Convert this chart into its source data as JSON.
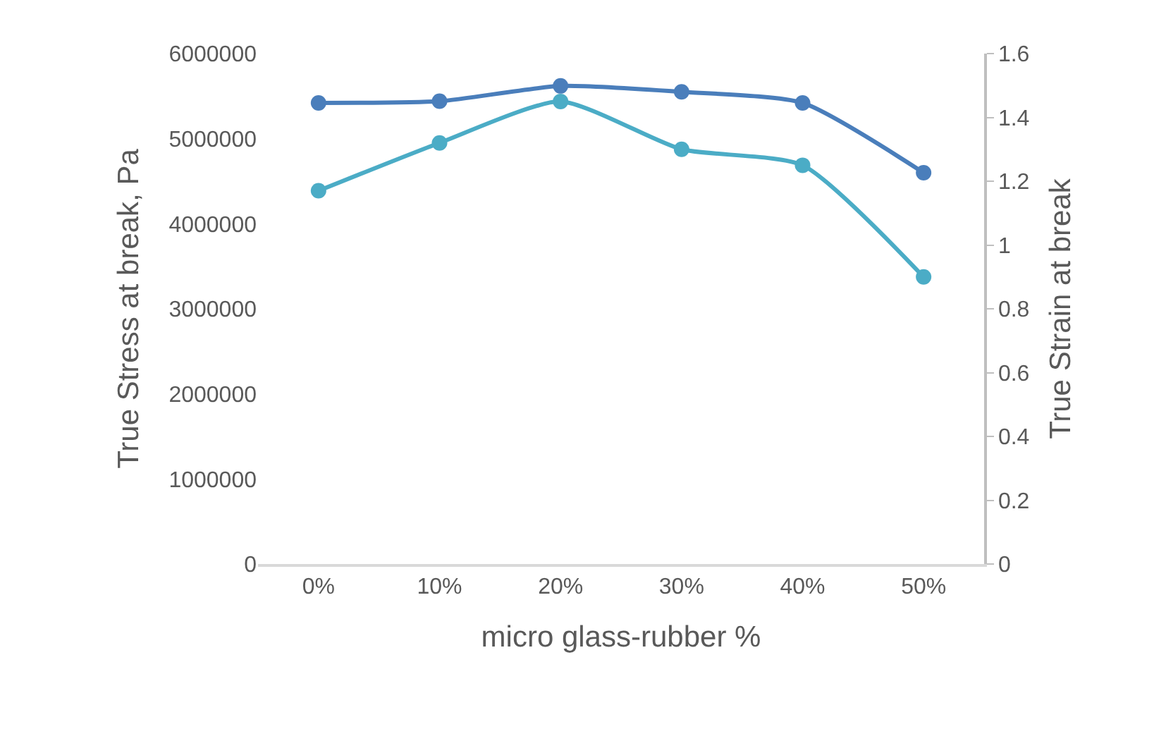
{
  "chart_data": {
    "type": "line",
    "xlabel": "micro glass-rubber %",
    "ylabel": "True Stress at break, Pa",
    "y2label": "True Strain at break",
    "categories": [
      "0%",
      "10%",
      "20%",
      "30%",
      "40%",
      "50%"
    ],
    "series": [
      {
        "color": "#4a7ebb",
        "values": [
          5420000,
          5440000,
          5620000,
          5550000,
          5420000,
          4600000
        ]
      },
      {
        "color": "#4bacc6",
        "axis": "y2",
        "values": [
          1.17,
          1.32,
          1.45,
          1.3,
          1.25,
          0.9
        ]
      }
    ],
    "ylim": [
      0,
      6000000
    ],
    "yticks": [
      0,
      1000000,
      2000000,
      3000000,
      4000000,
      5000000,
      6000000
    ],
    "y2lim": [
      0,
      1.6
    ],
    "y2ticks": [
      0,
      0.2,
      0.4,
      0.6,
      0.8,
      1,
      1.2,
      1.4,
      1.6
    ],
    "grid": false,
    "marker": "circle",
    "line_style": "solid"
  }
}
